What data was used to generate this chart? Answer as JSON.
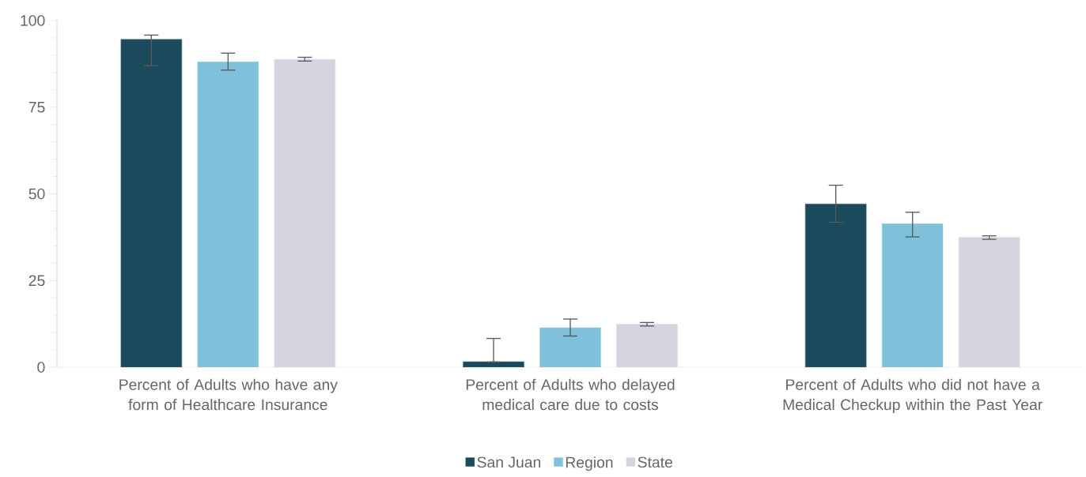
{
  "chart_data": {
    "type": "bar",
    "categories": [
      "Percent of Adults who have any form of Healthcare Insurance",
      "Percent of Adults who delayed medical care due to costs",
      "Percent of Adults who did not have a Medical Checkup within the Past Year"
    ],
    "series": [
      {
        "name": "San Juan",
        "color": "#1b4a5c",
        "values": [
          94.6,
          1.6,
          47.1
        ],
        "errors": [
          [
            87.0,
            95.8
          ],
          [
            1.5,
            8.3
          ],
          [
            41.8,
            52.5
          ]
        ]
      },
      {
        "name": "Region",
        "color": "#7fc0da",
        "values": [
          88.1,
          11.4,
          41.4
        ],
        "errors": [
          [
            85.7,
            90.6
          ],
          [
            9.0,
            13.9
          ],
          [
            37.6,
            44.7
          ]
        ]
      },
      {
        "name": "State",
        "color": "#d5d3df",
        "values": [
          88.8,
          12.4,
          37.5
        ],
        "errors": [
          [
            88.3,
            89.4
          ],
          [
            11.9,
            12.9
          ],
          [
            36.9,
            37.9
          ]
        ]
      }
    ],
    "ylim": [
      0,
      100
    ],
    "yticks": [
      0,
      25,
      50,
      75,
      100
    ],
    "grid": false,
    "legend": "bottom"
  }
}
